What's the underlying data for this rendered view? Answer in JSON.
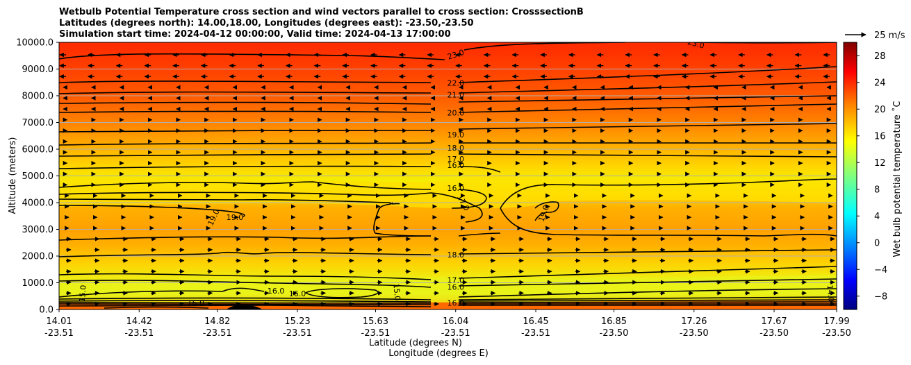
{
  "chart_data": {
    "type": "contour",
    "title_lines": [
      "Wetbulb Potential Temperature cross section and wind vectors parallel to cross section: CrosssectionB",
      "Latitudes (degrees north): 14.00,18.00, Longitudes (degrees east): -23.50,-23.50",
      "Simulation start time: 2024-04-12 00:00:00, Valid time: 2024-04-13 17:00:00"
    ],
    "xlabel": "Latitude (degrees N)",
    "xlabel2": "Longitude (degrees E)",
    "ylabel": "Altitude (meters)",
    "xlim": [
      14.01,
      17.99
    ],
    "ylim": [
      0,
      10000
    ],
    "x_ticks": [
      {
        "lat": "14.01",
        "lon": "-23.51",
        "v": 14.01
      },
      {
        "lat": "14.42",
        "lon": "-23.51",
        "v": 14.42
      },
      {
        "lat": "14.82",
        "lon": "-23.51",
        "v": 14.82
      },
      {
        "lat": "15.23",
        "lon": "-23.51",
        "v": 15.23
      },
      {
        "lat": "15.63",
        "lon": "-23.51",
        "v": 15.63
      },
      {
        "lat": "16.04",
        "lon": "-23.51",
        "v": 16.04
      },
      {
        "lat": "16.45",
        "lon": "-23.51",
        "v": 16.45
      },
      {
        "lat": "16.85",
        "lon": "-23.50",
        "v": 16.85
      },
      {
        "lat": "17.26",
        "lon": "-23.50",
        "v": 17.26
      },
      {
        "lat": "17.67",
        "lon": "-23.50",
        "v": 17.67
      },
      {
        "lat": "17.99",
        "lon": "-23.50",
        "v": 17.99
      }
    ],
    "y_ticks": [
      {
        "label": "0.0",
        "v": 0
      },
      {
        "label": "1000.0",
        "v": 1000
      },
      {
        "label": "2000.0",
        "v": 2000
      },
      {
        "label": "3000.0",
        "v": 3000
      },
      {
        "label": "4000.0",
        "v": 4000
      },
      {
        "label": "5000.0",
        "v": 5000
      },
      {
        "label": "6000.0",
        "v": 6000
      },
      {
        "label": "7000.0",
        "v": 7000
      },
      {
        "label": "8000.0",
        "v": 8000
      },
      {
        "label": "9000.0",
        "v": 9000
      },
      {
        "label": "10000.0",
        "v": 10000
      }
    ],
    "colorbar": {
      "label": "Wet bulb potential temperature $^\\circ$C",
      "label_text": "Wet bulb potential temperature ˚C",
      "range": [
        -10,
        30
      ],
      "ticks": [
        {
          "label": "−8",
          "v": -8
        },
        {
          "label": "−4",
          "v": -4
        },
        {
          "label": "0",
          "v": 0
        },
        {
          "label": "4",
          "v": 4
        },
        {
          "label": "8",
          "v": 8
        },
        {
          "label": "12",
          "v": 12
        },
        {
          "label": "16",
          "v": 16
        },
        {
          "label": "20",
          "v": 20
        },
        {
          "label": "24",
          "v": 24
        },
        {
          "label": "28",
          "v": 28
        }
      ]
    },
    "quiver_key": {
      "label": "25 m/s",
      "speed_ms": 25
    },
    "contour_labels": [
      {
        "text": "23.0",
        "x": 16.04,
        "y": 9550,
        "rot": -18
      },
      {
        "text": "23.0",
        "x": 17.27,
        "y": 9950,
        "rot": 15
      },
      {
        "text": "22.0",
        "x": 16.04,
        "y": 8480,
        "rot": 0
      },
      {
        "text": "21.0",
        "x": 16.04,
        "y": 8040,
        "rot": 0
      },
      {
        "text": "20.0",
        "x": 16.04,
        "y": 7370,
        "rot": 0
      },
      {
        "text": "19.0",
        "x": 16.04,
        "y": 6550,
        "rot": 0
      },
      {
        "text": "18.0",
        "x": 16.04,
        "y": 6050,
        "rot": 0
      },
      {
        "text": "17.0",
        "x": 16.04,
        "y": 5630,
        "rot": 0
      },
      {
        "text": "16.0",
        "x": 16.04,
        "y": 5400,
        "rot": 0
      },
      {
        "text": "16.0",
        "x": 16.04,
        "y": 4550,
        "rot": 0
      },
      {
        "text": "17.0",
        "x": 16.08,
        "y": 4000,
        "rot": 60
      },
      {
        "text": "19.0",
        "x": 14.91,
        "y": 3450,
        "rot": 0
      },
      {
        "text": "19.0",
        "x": 14.8,
        "y": 3450,
        "rot": -65
      },
      {
        "text": "19.0",
        "x": 16.49,
        "y": 3600,
        "rot": -70
      },
      {
        "text": "18.0",
        "x": 16.04,
        "y": 2050,
        "rot": 0
      },
      {
        "text": "17.0",
        "x": 16.04,
        "y": 1100,
        "rot": 0
      },
      {
        "text": "16.0",
        "x": 16.04,
        "y": 850,
        "rot": 0
      },
      {
        "text": "16.0",
        "x": 15.12,
        "y": 700,
        "rot": 0
      },
      {
        "text": "16.0",
        "x": 15.23,
        "y": 600,
        "rot": 0
      },
      {
        "text": "16.0",
        "x": 14.71,
        "y": 250,
        "rot": 0
      },
      {
        "text": "16.0",
        "x": 16.04,
        "y": 250,
        "rot": 0
      },
      {
        "text": "15.0",
        "x": 15.74,
        "y": 650,
        "rot": 85
      },
      {
        "text": "15.0",
        "x": 14.13,
        "y": 600,
        "rot": -85
      },
      {
        "text": "14.0",
        "x": 17.96,
        "y": 600,
        "rot": 85
      }
    ]
  }
}
